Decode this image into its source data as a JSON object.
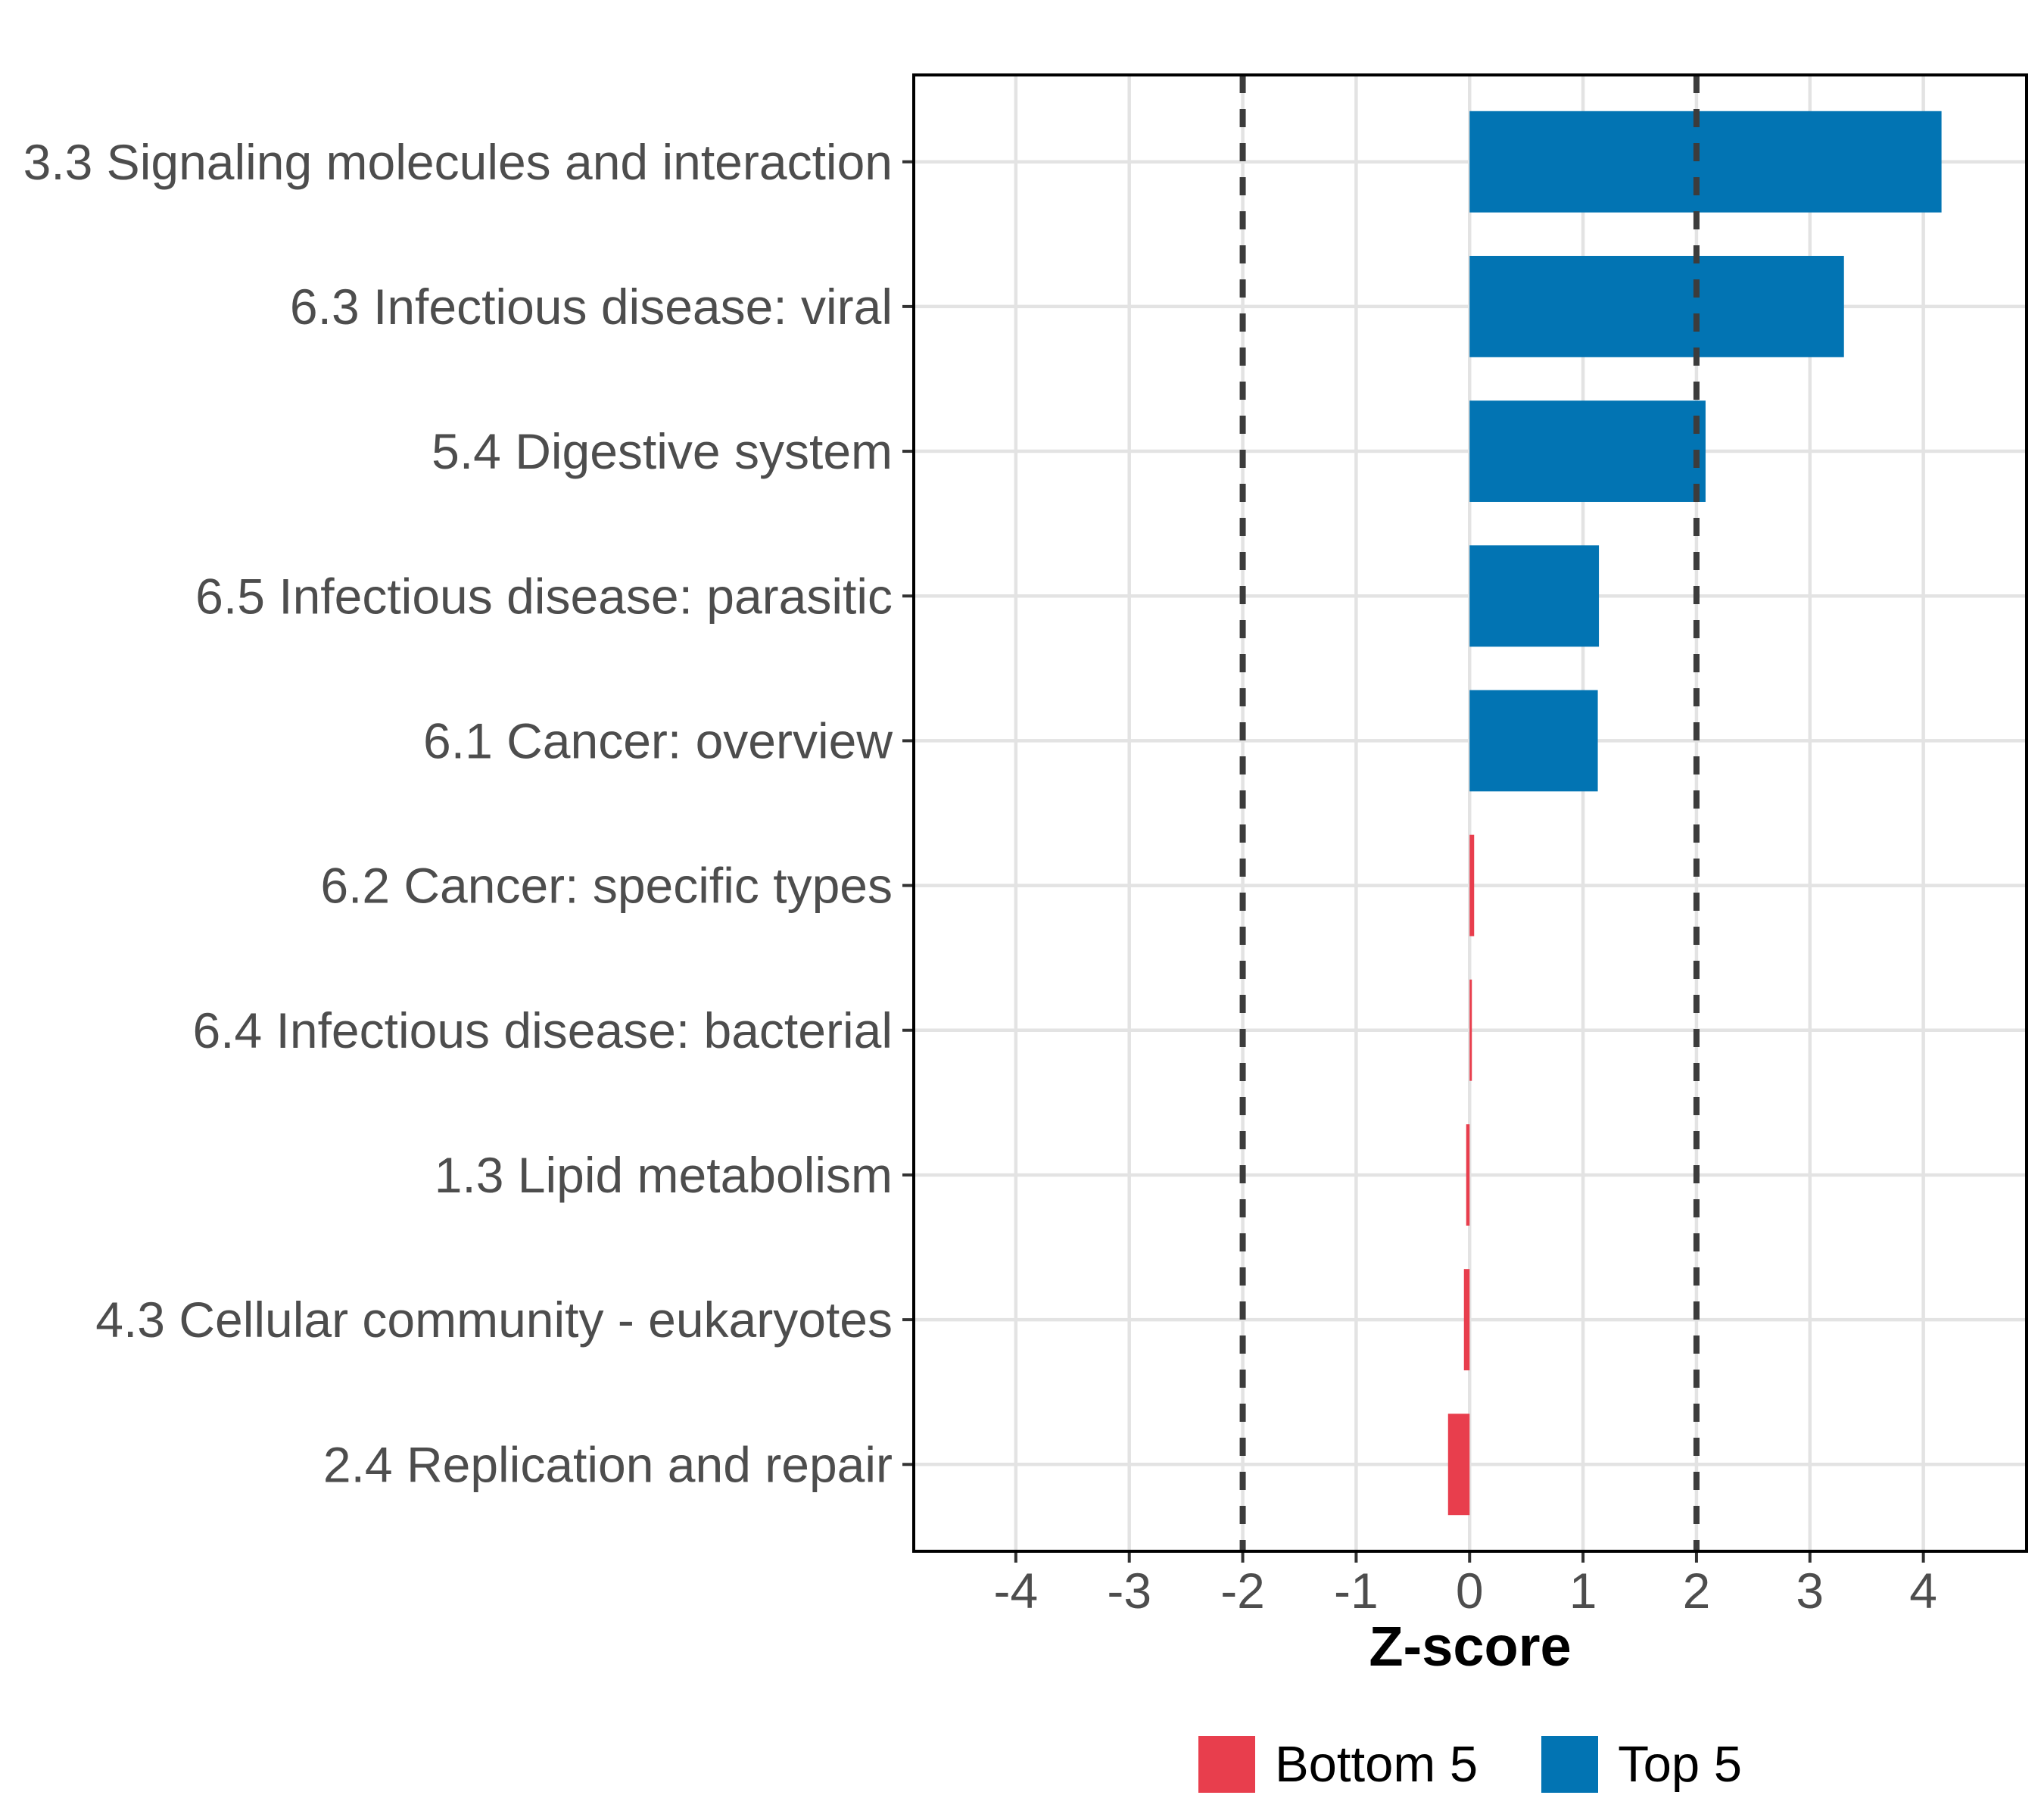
{
  "chart_data": {
    "type": "bar",
    "orientation": "horizontal",
    "title": "",
    "xlabel": "Z-score",
    "ylabel": "",
    "categories": [
      "3.3 Signaling molecules and interaction",
      "6.3 Infectious disease: viral",
      "5.4 Digestive system",
      "6.5 Infectious disease: parasitic",
      "6.1 Cancer: overview",
      "6.2 Cancer: specific types",
      "6.4 Infectious disease: bacterial",
      "1.3 Lipid metabolism",
      "4.3 Cellular community - eukaryotes",
      "2.4 Replication and repair"
    ],
    "values": [
      4.16,
      3.3,
      2.08,
      1.14,
      1.13,
      0.04,
      0.02,
      -0.03,
      -0.05,
      -0.19
    ],
    "groups": [
      "Top 5",
      "Top 5",
      "Top 5",
      "Top 5",
      "Top 5",
      "Bottom 5",
      "Bottom 5",
      "Bottom 5",
      "Bottom 5",
      "Bottom 5"
    ],
    "x_ticks": [
      -4,
      -3,
      -2,
      -1,
      0,
      1,
      2,
      3,
      4
    ],
    "xlim": [
      -4.9,
      4.91
    ],
    "reference_lines": [
      -2,
      2
    ],
    "grid": true,
    "legend_position": "bottom",
    "legend": [
      {
        "label": "Bottom 5",
        "color": "#E83E4D"
      },
      {
        "label": "Top 5",
        "color": "#0274B3"
      }
    ],
    "colors": {
      "top5": "#0274B3",
      "bottom5": "#E83E4D",
      "grid": "#E3E3E3",
      "reference_line": "#3C3C3C",
      "axis_text": "#4D4D4D",
      "tick_mark": "#333333",
      "panel_border": "#000000",
      "background": "#FFFFFF"
    }
  }
}
